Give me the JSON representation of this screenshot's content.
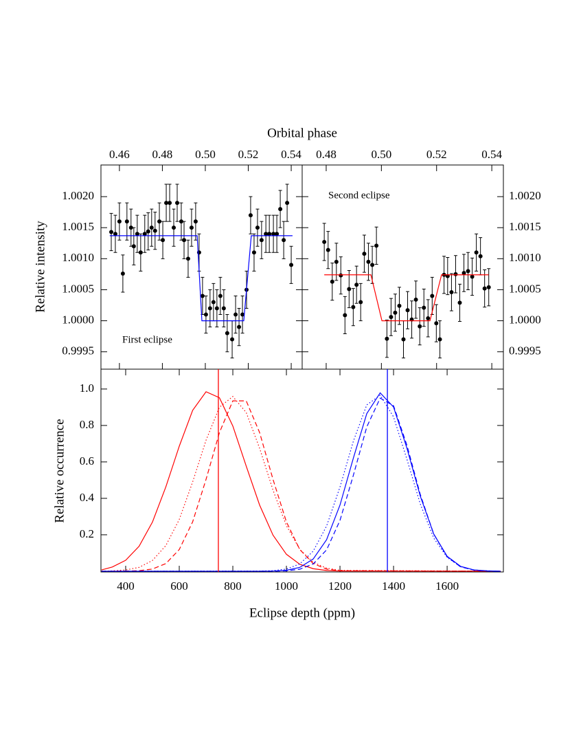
{
  "chart_data": [
    {
      "type": "scatter",
      "xlabel": "Orbital phase",
      "ylabel": "Relative intensity",
      "annotation": "First eclipse",
      "xlim": [
        0.4514,
        0.5451
      ],
      "ylim": [
        0.99922,
        1.00251
      ],
      "xtick_side": "top",
      "ytick_side": "left",
      "xticks": [
        0.46,
        0.48,
        {
          "value": 0.5,
          "label": "0.50"
        },
        0.52,
        0.54
      ],
      "yticks": [
        0.9995,
        {
          "value": 1.0,
          "label": "1.0000"
        },
        1.0005,
        {
          "value": 1.001,
          "label": "1.0010"
        },
        1.0015,
        {
          "value": 1.002,
          "label": "1.0020"
        }
      ],
      "series": [
        {
          "color": "#000000",
          "error": 0.0003,
          "x": [
            0.4562,
            0.4581,
            0.46,
            0.4616,
            0.4635,
            0.4654,
            0.4667,
            0.4683,
            0.4699,
            0.4718,
            0.4734,
            0.475,
            0.4766,
            0.4786,
            0.4802,
            0.4818,
            0.4834,
            0.4853,
            0.4869,
            0.4888,
            0.4901,
            0.492,
            0.4936,
            0.4955,
            0.4971,
            0.4987,
            0.5003,
            0.5022,
            0.5038,
            0.5054,
            0.507,
            0.5086,
            0.5102,
            0.5125,
            0.5141,
            0.5157,
            0.5173,
            0.5192,
            0.5211,
            0.5227,
            0.5243,
            0.5262,
            0.5282,
            0.5298,
            0.5317,
            0.5333,
            0.5349,
            0.5365,
            0.5381,
            0.54
          ],
          "values": [
            1.00143,
            1.0014,
            1.0016,
            1.00076,
            1.0016,
            1.0015,
            1.0012,
            1.0014,
            1.0011,
            1.0014,
            1.00144,
            1.0015,
            1.00145,
            1.0016,
            1.0013,
            1.0019,
            1.0019,
            1.0015,
            1.0019,
            1.0016,
            1.0013,
            1.001,
            1.0015,
            1.0016,
            1.0011,
            1.0004,
            1.0001,
            1.0002,
            1.0003,
            1.0002,
            1.0004,
            1.0002,
            0.9998,
            0.9997,
            1.0001,
            0.9999,
            1.0001,
            1.0005,
            1.0017,
            1.0011,
            1.0015,
            1.0013,
            1.0014,
            1.0014,
            1.0014,
            1.0014,
            1.0018,
            1.0013,
            1.0019,
            1.0009
          ]
        },
        {
          "color": "#0000ff",
          "x": [
            0.4555,
            0.4962,
            0.4984,
            0.5179,
            0.5214,
            0.5406
          ],
          "values": [
            1.00137,
            1.00137,
            1.0,
            1.0,
            1.00137,
            1.00137
          ]
        }
      ]
    },
    {
      "type": "scatter",
      "annotation": "Second eclipse",
      "xlim": [
        0.4713,
        0.5442
      ],
      "ylim": [
        0.99922,
        1.00251
      ],
      "xtick_side": "top",
      "ytick_side": "right",
      "xticks": [
        0.48,
        {
          "value": 0.5,
          "label": "0.50"
        },
        0.52,
        0.54
      ],
      "yticks": [
        0.9995,
        {
          "value": 1.0,
          "label": "1.0000"
        },
        1.0005,
        {
          "value": 1.001,
          "label": "1.0010"
        },
        1.0015,
        {
          "value": 1.002,
          "label": "1.0020"
        }
      ],
      "series": [
        {
          "color": "#000000",
          "error": 0.0003,
          "x": [
            0.4793,
            0.4807,
            0.4822,
            0.4837,
            0.4853,
            0.4868,
            0.4883,
            0.4898,
            0.491,
            0.4925,
            0.4938,
            0.4953,
            0.4967,
            0.4982,
            0.502,
            0.5035,
            0.505,
            0.5065,
            0.508,
            0.5095,
            0.511,
            0.5125,
            0.5139,
            0.5154,
            0.5169,
            0.5184,
            0.5199,
            0.5212,
            0.5227,
            0.524,
            0.5254,
            0.5269,
            0.5284,
            0.5299,
            0.5314,
            0.5329,
            0.5344,
            0.5359,
            0.5374,
            0.5389
          ],
          "values": [
            1.00127,
            1.00114,
            1.00063,
            1.00095,
            1.00073,
            1.00009,
            1.00051,
            1.00022,
            1.00058,
            1.0003,
            1.00108,
            1.00095,
            1.0009,
            1.00121,
            0.99971,
            1.00006,
            1.00013,
            1.00024,
            0.9997,
            1.00017,
            1.00002,
            1.00034,
            0.99991,
            1.00021,
            1.00004,
            1.0004,
            0.99996,
            0.9997,
            1.00074,
            1.00072,
            1.00046,
            1.00075,
            1.00029,
            1.00077,
            1.0008,
            1.00071,
            1.0011,
            1.00104,
            1.00052,
            1.00054
          ]
        },
        {
          "color": "#ff0000",
          "x": [
            0.4793,
            0.4962,
            0.5002,
            0.5176,
            0.5218,
            0.5389
          ],
          "values": [
            1.00074,
            1.00074,
            1.0,
            1.0,
            1.00074,
            1.00074
          ]
        }
      ]
    },
    {
      "type": "line",
      "xlabel": "Eclipse depth (ppm)",
      "ylabel": "Relative occurrence",
      "xlim": [
        307.7,
        1810
      ],
      "ylim": [
        -0.004,
        1.109
      ],
      "xtick_side": "bottom",
      "ytick_side": "left",
      "xticks": [
        400,
        600,
        800,
        1000,
        1200,
        1400,
        1600
      ],
      "yticks": [
        0.2,
        0.4,
        0.6,
        0.8,
        {
          "value": 1.0,
          "label": "1.0"
        }
      ],
      "vlines": [
        {
          "value": 746,
          "color": "#ff0000"
        },
        {
          "value": 1377,
          "color": "#0000ff"
        }
      ],
      "series": [
        {
          "color": "#ff0000",
          "dash": "solid",
          "x": [
            310,
            350,
            400,
            450,
            500,
            550,
            600,
            650,
            700,
            750,
            800,
            850,
            900,
            950,
            1000,
            1050,
            1100,
            1150,
            1200,
            1800
          ],
          "values": [
            0.007,
            0.023,
            0.06,
            0.137,
            0.27,
            0.463,
            0.686,
            0.883,
            0.985,
            0.952,
            0.797,
            0.577,
            0.363,
            0.198,
            0.093,
            0.038,
            0.014,
            0.004,
            0.001,
            0
          ]
        },
        {
          "color": "#ff0000",
          "dash": "dotted",
          "x": [
            310,
            350,
            400,
            450,
            500,
            550,
            600,
            650,
            700,
            750,
            800,
            850,
            900,
            950,
            1000,
            1050,
            1100,
            1150,
            1200,
            1800
          ],
          "values": [
            0,
            0.002,
            0.007,
            0.021,
            0.059,
            0.141,
            0.284,
            0.49,
            0.719,
            0.9,
            0.959,
            0.871,
            0.675,
            0.445,
            0.25,
            0.12,
            0.049,
            0.017,
            0.005,
            0
          ]
        },
        {
          "color": "#ff0000",
          "dash": "dashed",
          "x": [
            310,
            350,
            400,
            450,
            500,
            550,
            600,
            650,
            700,
            750,
            800,
            850,
            900,
            950,
            1000,
            1050,
            1100,
            1150,
            1200,
            1800
          ],
          "values": [
            0,
            0,
            0.001,
            0.003,
            0.012,
            0.042,
            0.119,
            0.271,
            0.504,
            0.761,
            0.935,
            0.935,
            0.761,
            0.504,
            0.271,
            0.119,
            0.042,
            0.012,
            0.003,
            0
          ]
        },
        {
          "color": "#0000ff",
          "dash": "solid",
          "x": [
            310,
            900,
            950,
            1000,
            1050,
            1100,
            1150,
            1200,
            1250,
            1300,
            1350,
            1400,
            1450,
            1500,
            1550,
            1600,
            1650,
            1700,
            1750,
            1800
          ],
          "values": [
            0,
            0,
            0.001,
            0.005,
            0.021,
            0.067,
            0.173,
            0.363,
            0.621,
            0.865,
            0.979,
            0.901,
            0.675,
            0.411,
            0.204,
            0.082,
            0.027,
            0.007,
            0.002,
            0
          ]
        },
        {
          "color": "#0000ff",
          "dash": "dotted",
          "x": [
            310,
            900,
            950,
            1000,
            1050,
            1100,
            1150,
            1200,
            1250,
            1300,
            1350,
            1400,
            1450,
            1500,
            1550,
            1600,
            1650,
            1700,
            1750,
            1800
          ],
          "values": [
            0,
            0.001,
            0.003,
            0.012,
            0.04,
            0.11,
            0.248,
            0.462,
            0.714,
            0.913,
            0.966,
            0.847,
            0.614,
            0.368,
            0.182,
            0.076,
            0.025,
            0.007,
            0.002,
            0
          ]
        },
        {
          "color": "#0000ff",
          "dash": "dashed",
          "x": [
            310,
            900,
            950,
            1000,
            1050,
            1100,
            1150,
            1200,
            1250,
            1300,
            1350,
            1400,
            1450,
            1500,
            1550,
            1600,
            1650,
            1700,
            1750,
            1800
          ],
          "values": [
            0,
            0,
            0,
            0.002,
            0.011,
            0.04,
            0.117,
            0.279,
            0.527,
            0.792,
            0.95,
            0.908,
            0.691,
            0.42,
            0.204,
            0.079,
            0.024,
            0.006,
            0.001,
            0
          ]
        }
      ]
    }
  ]
}
